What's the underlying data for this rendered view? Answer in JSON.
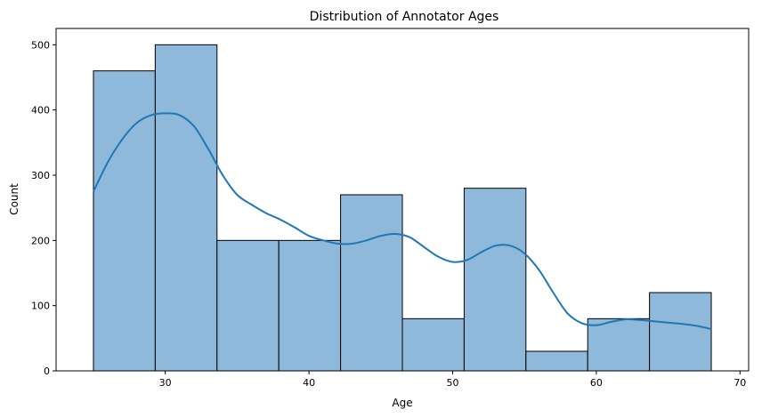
{
  "chart_data": {
    "type": "bar",
    "title": "Distribution of Annotator Ages",
    "xlabel": "Age",
    "ylabel": "Count",
    "xlim": [
      22.4,
      70.6
    ],
    "ylim": [
      0,
      525
    ],
    "xticks": [
      30,
      40,
      50,
      60,
      70
    ],
    "yticks": [
      0,
      100,
      200,
      300,
      400,
      500
    ],
    "bins": [
      {
        "start": 25.0,
        "end": 29.3,
        "count": 460
      },
      {
        "start": 29.3,
        "end": 33.6,
        "count": 500
      },
      {
        "start": 33.6,
        "end": 37.9,
        "count": 200
      },
      {
        "start": 37.9,
        "end": 42.2,
        "count": 200
      },
      {
        "start": 42.2,
        "end": 46.5,
        "count": 270
      },
      {
        "start": 46.5,
        "end": 50.8,
        "count": 80
      },
      {
        "start": 50.8,
        "end": 55.1,
        "count": 280
      },
      {
        "start": 55.1,
        "end": 59.4,
        "count": 30
      },
      {
        "start": 59.4,
        "end": 63.7,
        "count": 80
      },
      {
        "start": 63.7,
        "end": 68.0,
        "count": 120
      }
    ],
    "kde": {
      "x": [
        25,
        26,
        27,
        28,
        29,
        30,
        31,
        32,
        33,
        34,
        35,
        36,
        37,
        38,
        39,
        40,
        41,
        42,
        43,
        44,
        45,
        46,
        47,
        48,
        49,
        50,
        51,
        52,
        53,
        54,
        55,
        56,
        57,
        58,
        59,
        60,
        61,
        62,
        63,
        64,
        65,
        66,
        67,
        68
      ],
      "y": [
        275,
        320,
        355,
        380,
        392,
        395,
        392,
        375,
        340,
        300,
        270,
        255,
        242,
        232,
        220,
        207,
        200,
        195,
        195,
        200,
        207,
        210,
        205,
        190,
        175,
        167,
        170,
        182,
        192,
        192,
        180,
        155,
        120,
        88,
        73,
        70,
        75,
        79,
        78,
        76,
        74,
        72,
        69,
        64
      ]
    },
    "colors": {
      "bar_fill": "#8fb9db",
      "bar_edge": "#000000",
      "kde_line": "#1f77b4"
    },
    "grid": false,
    "legend": "none"
  }
}
